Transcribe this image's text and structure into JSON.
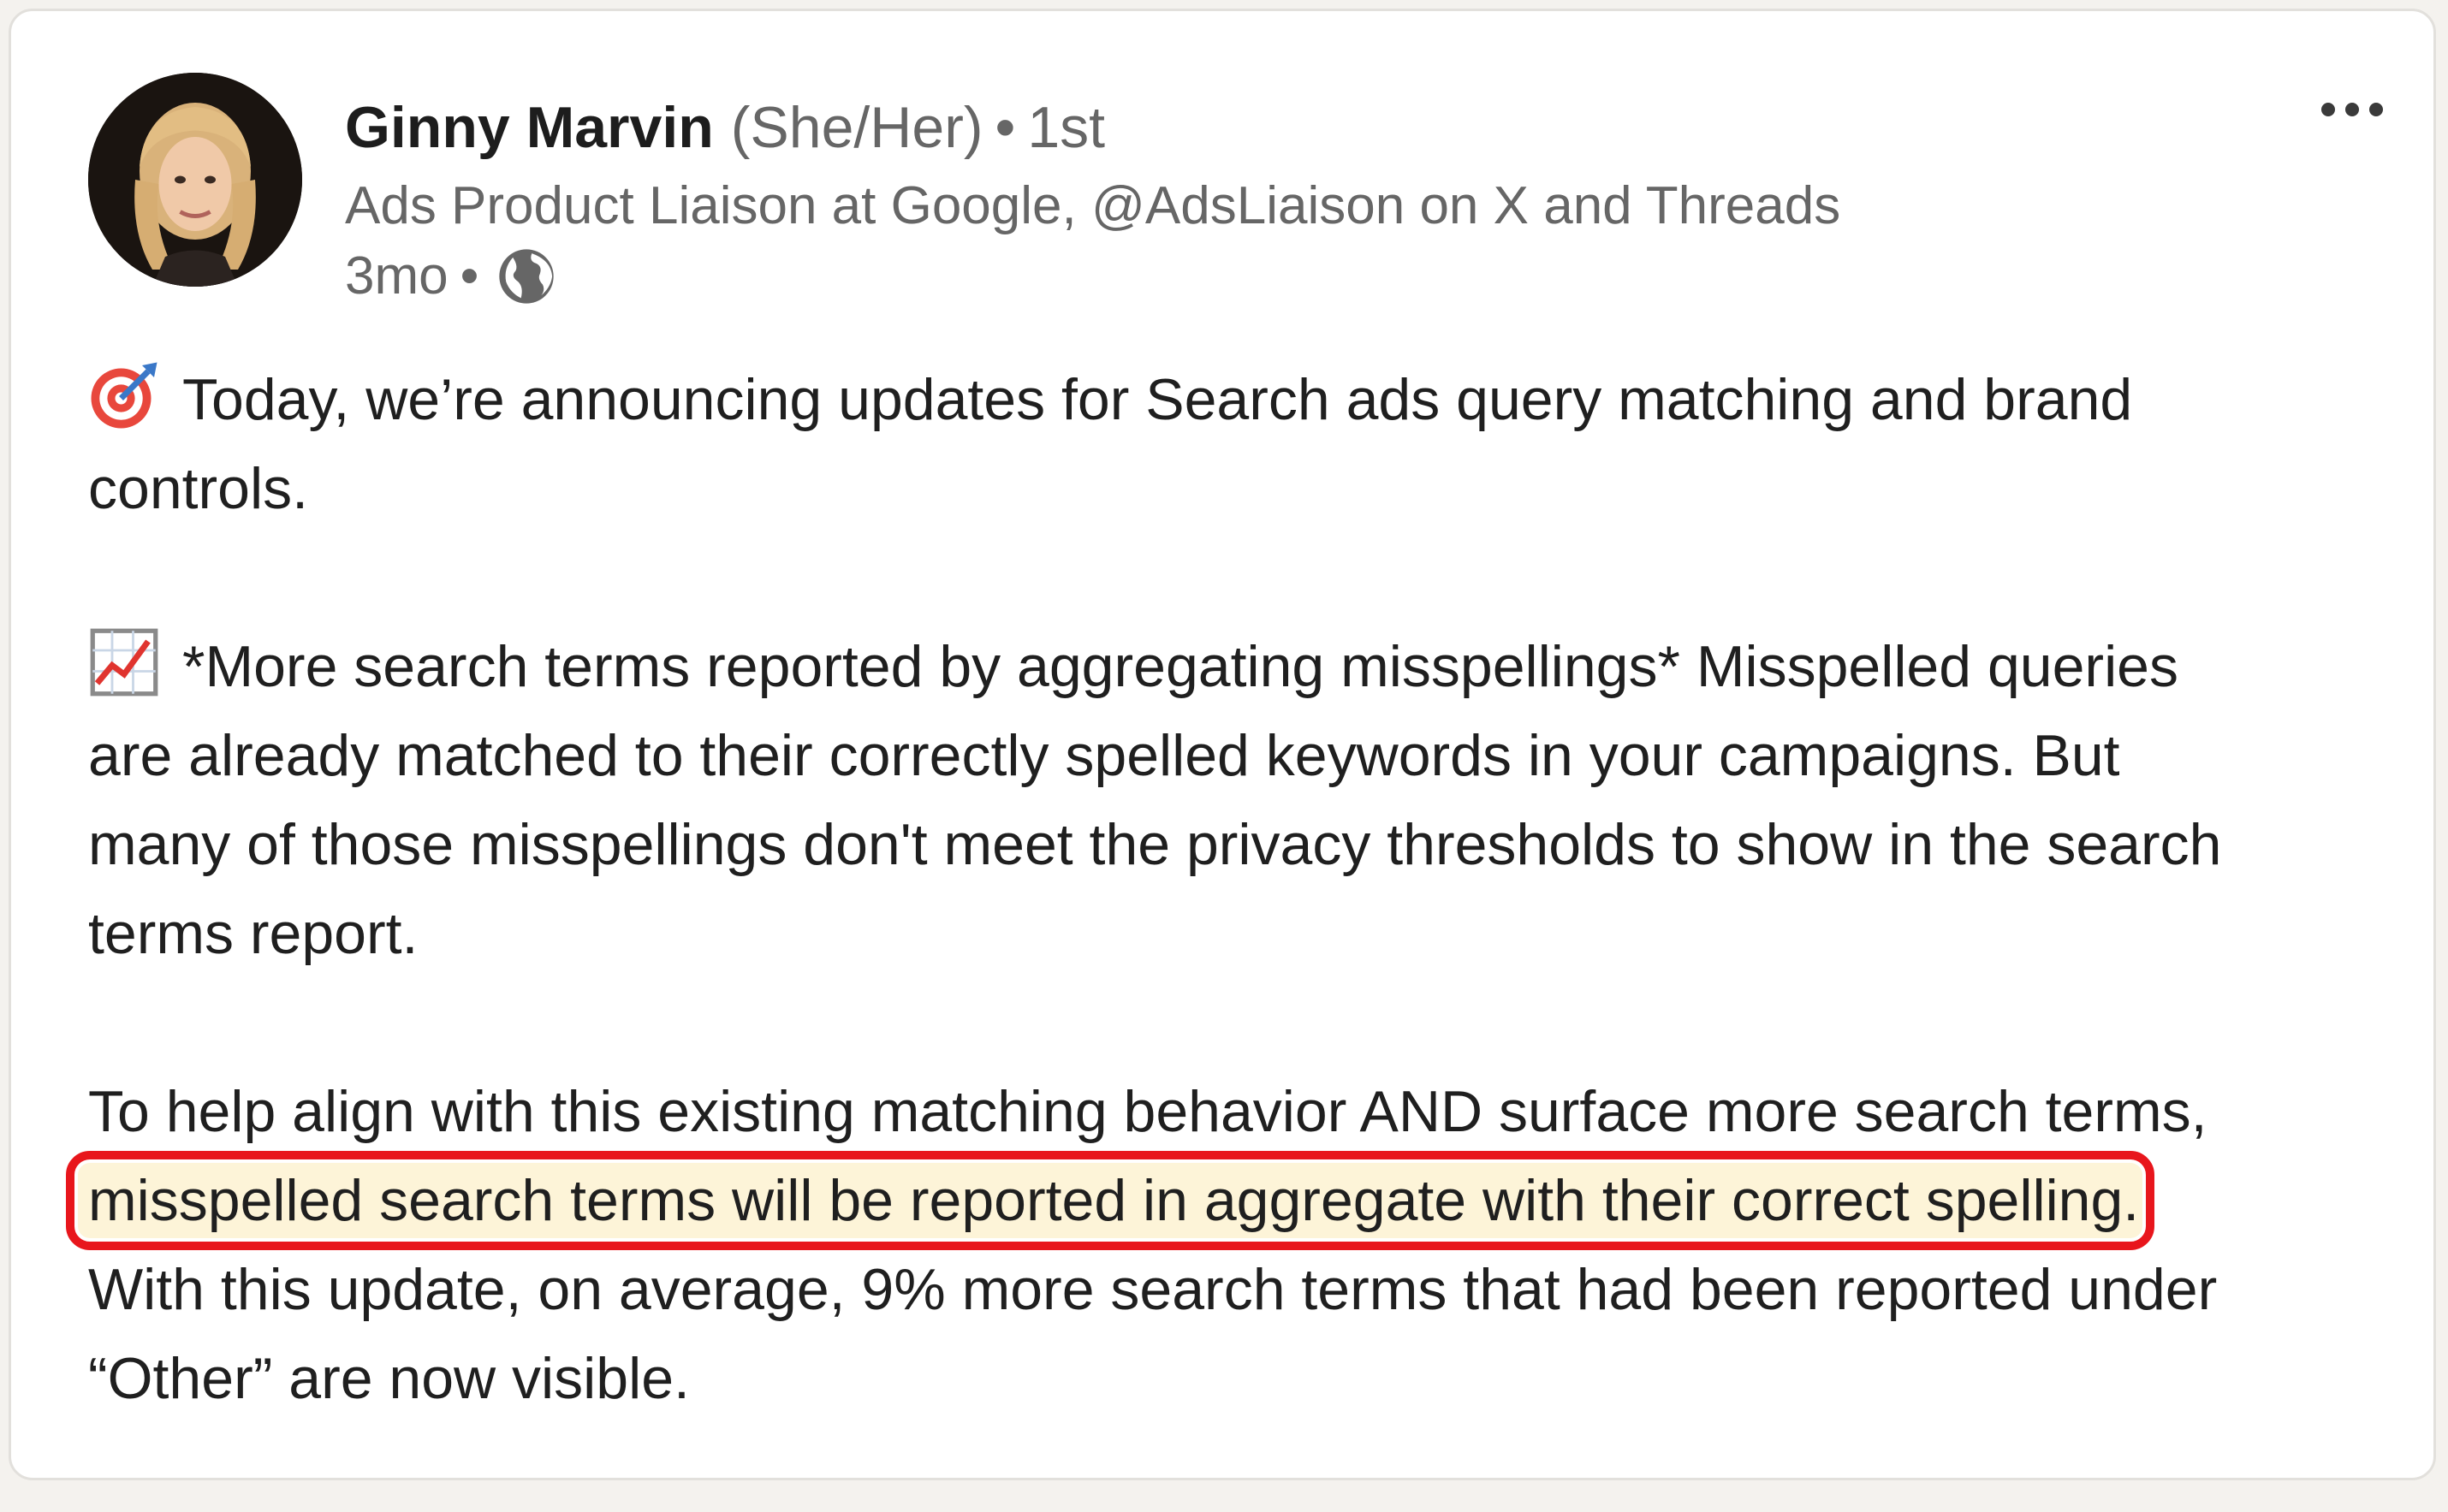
{
  "post": {
    "author": {
      "name": "Ginny Marvin",
      "pronouns": "(She/Her)",
      "separator": "•",
      "degree": "1st",
      "headline": "Ads Product Liaison at Google, @AdsLiaison on X and Threads",
      "time": "3mo",
      "visibility_icon": "globe-icon"
    },
    "more_icon": "ellipsis-icon",
    "paragraphs": [
      {
        "icon": "direct-hit-target-icon",
        "lines": [
          "Today, we’re announcing updates for Search ads query matching and brand",
          "controls."
        ]
      },
      {
        "icon": "chart-increasing-icon",
        "lines": [
          "*More search terms reported by aggregating misspellings* Misspelled queries",
          "are already matched to their correctly spelled keywords in your campaigns. But",
          "many of those misspellings don't meet the privacy thresholds to show in the search",
          "terms report."
        ]
      },
      {
        "lines": [
          "To help align with this existing matching behavior AND surface more search terms,",
          "misspelled search terms will be reported in aggregate with their correct spelling.",
          "With this update, on average, 9% more search terms that had been reported under",
          "“Other” are now visible."
        ]
      }
    ],
    "highlight": {
      "color": "#e8161c",
      "fill": "#fdf4d8"
    }
  }
}
